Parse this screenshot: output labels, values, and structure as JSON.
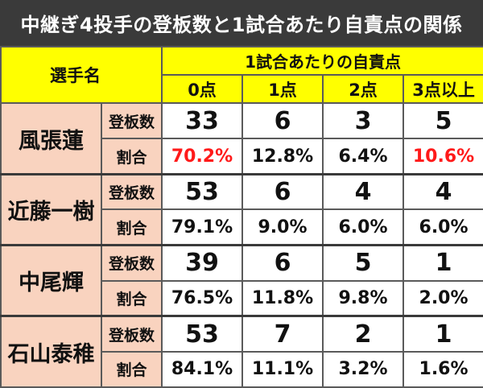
{
  "title": "中継ぎ4投手の登板数と1試合あたり自責点の関係",
  "header": {
    "player_col": "選手名",
    "group_label": "1試合あたりの自責点",
    "columns": [
      "0点",
      "1点",
      "2点",
      "3点以上"
    ]
  },
  "row_labels": {
    "appearances": "登板数",
    "ratio": "割合"
  },
  "highlight_color": "#ff1a1a",
  "players": [
    {
      "name": "風張蓮",
      "appearances": [
        "33",
        "6",
        "3",
        "5"
      ],
      "ratio": [
        "70.2%",
        "12.8%",
        "6.4%",
        "10.6%"
      ],
      "ratio_highlight": [
        true,
        false,
        false,
        true
      ]
    },
    {
      "name": "近藤一樹",
      "appearances": [
        "53",
        "6",
        "4",
        "4"
      ],
      "ratio": [
        "79.1%",
        "9.0%",
        "6.0%",
        "6.0%"
      ],
      "ratio_highlight": [
        false,
        false,
        false,
        false
      ]
    },
    {
      "name": "中尾輝",
      "appearances": [
        "39",
        "6",
        "5",
        "1"
      ],
      "ratio": [
        "76.5%",
        "11.8%",
        "9.8%",
        "2.0%"
      ],
      "ratio_highlight": [
        false,
        false,
        false,
        false
      ]
    },
    {
      "name": "石山泰稚",
      "appearances": [
        "53",
        "7",
        "2",
        "1"
      ],
      "ratio": [
        "84.1%",
        "11.1%",
        "3.2%",
        "1.6%"
      ],
      "ratio_highlight": [
        false,
        false,
        false,
        false
      ]
    }
  ]
}
